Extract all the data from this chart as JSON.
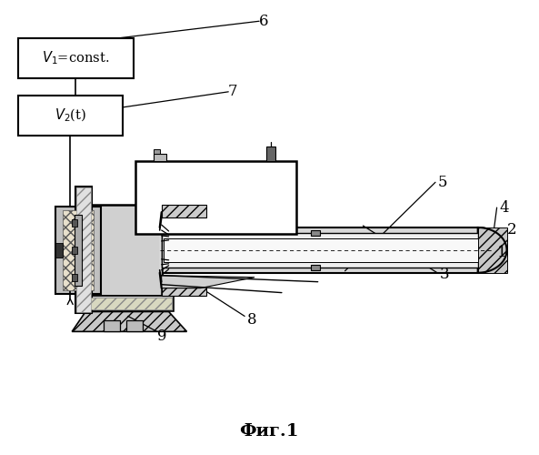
{
  "title": "Фиг.1",
  "bg_color": "#ffffff",
  "line_color": "#000000",
  "figsize": [
    5.93,
    5.0
  ],
  "dpi": 100,
  "box6_text": "$V_1$=const.",
  "box7_text": "$V_2$(t)",
  "label6": "6",
  "label7": "7",
  "label1": "1",
  "label2": "2",
  "label3": "3",
  "label4": "4",
  "label5": "5",
  "label8": "8",
  "label9": "9"
}
